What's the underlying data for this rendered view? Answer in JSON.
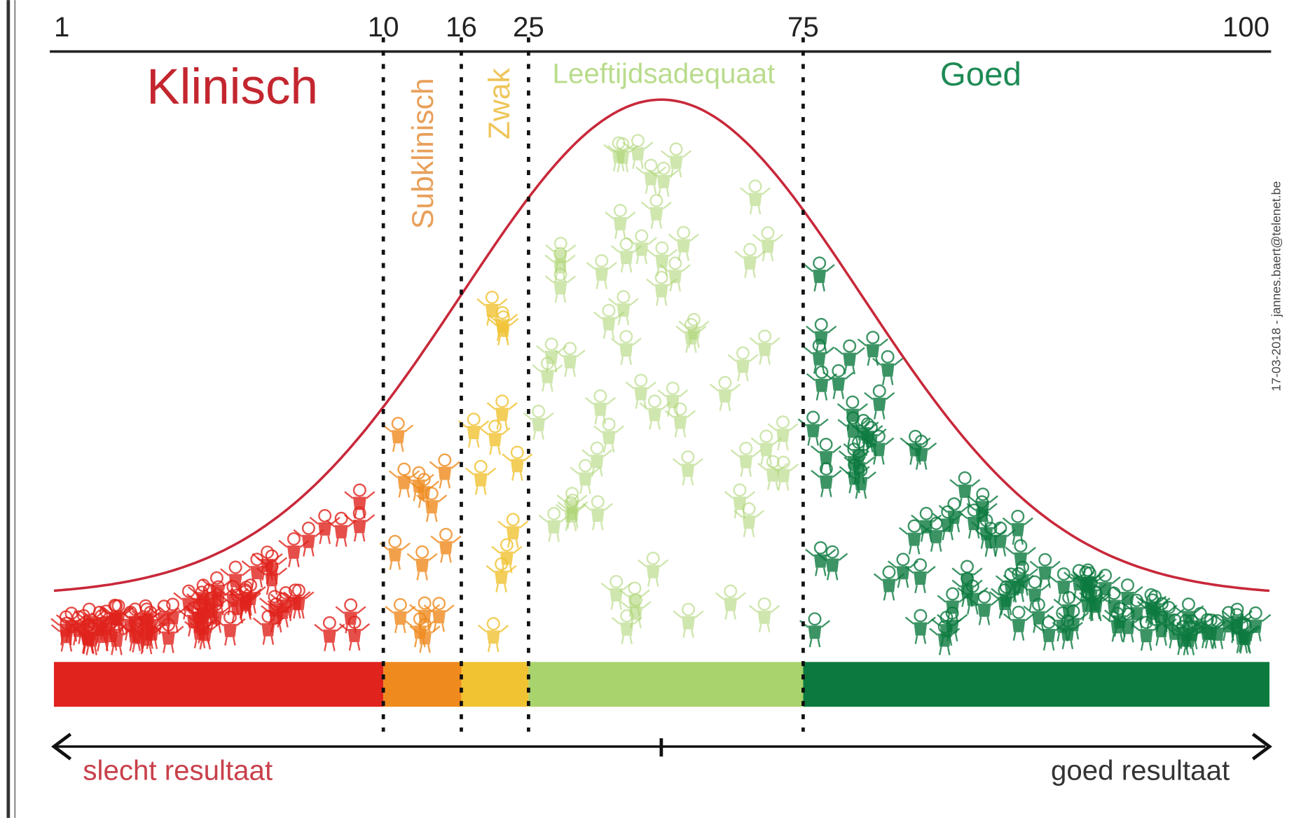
{
  "scale": {
    "ticks": [
      "1",
      "10",
      "16",
      "25",
      "75",
      "100"
    ]
  },
  "zones": [
    {
      "label": "Klinisch",
      "color": "#e0231c",
      "label_color": "#c3262f"
    },
    {
      "label": "Subklinisch",
      "color": "#ef8a1e",
      "label_color": "#e8a05a"
    },
    {
      "label": "Zwak",
      "color": "#f1c232",
      "label_color": "#efc55a"
    },
    {
      "label": "Leeftijdsadequaat",
      "color": "#a9d36c",
      "label_color": "#b9dc8c"
    },
    {
      "label": "Goed",
      "color": "#0c7a3f",
      "label_color": "#1e8a55"
    }
  ],
  "curve_color": "#c8283a",
  "arrow": {
    "left": "slecht resultaat",
    "right": "goed resultaat"
  },
  "credit": "17-03-2018 - jannes.baert@telenet.be"
}
